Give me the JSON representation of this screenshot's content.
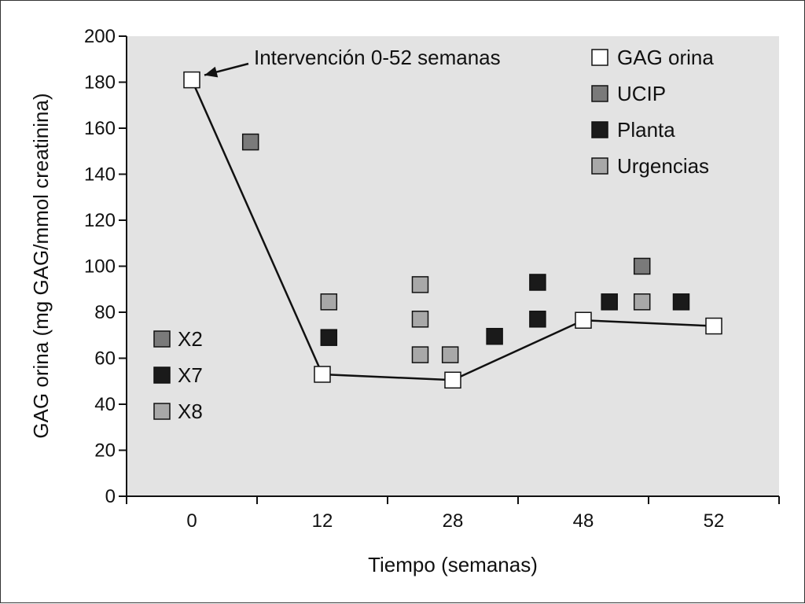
{
  "chart_data": {
    "type": "scatter",
    "title": "",
    "xlabel": "Tiempo (semanas)",
    "ylabel": "GAG orina (mg GAG/mmol creatinina)",
    "ylim": [
      0,
      200
    ],
    "yticks": [
      0,
      20,
      40,
      60,
      80,
      100,
      120,
      140,
      160,
      180,
      200
    ],
    "x_range": [
      -0.5,
      4.5
    ],
    "x_tick_labels": [
      {
        "x": 0,
        "label": "0"
      },
      {
        "x": 1,
        "label": "12"
      },
      {
        "x": 2,
        "label": "28"
      },
      {
        "x": 3,
        "label": "48"
      },
      {
        "x": 4,
        "label": "52"
      }
    ],
    "x_minor_ticks": [
      -0.5,
      0.5,
      1.5,
      2.5,
      3.5,
      4.5
    ],
    "series": [
      {
        "name": "GAG orina",
        "kind": "line-square",
        "color": "#ffffff",
        "points": [
          [
            0,
            181
          ],
          [
            1,
            53
          ],
          [
            2,
            50.5
          ],
          [
            3,
            76.5
          ],
          [
            4,
            74
          ]
        ]
      },
      {
        "name": "UCIP",
        "kind": "square",
        "color": "#7a7a7a",
        "points": [
          [
            0.45,
            154
          ],
          [
            3.45,
            100
          ]
        ]
      },
      {
        "name": "Planta",
        "kind": "square",
        "color": "#1a1a1a",
        "points": [
          [
            1.05,
            69
          ],
          [
            2.32,
            69.5
          ],
          [
            2.65,
            93
          ],
          [
            2.65,
            77
          ],
          [
            3.2,
            84.5
          ],
          [
            3.75,
            84.5
          ]
        ]
      },
      {
        "name": "Urgencias",
        "kind": "square",
        "color": "#a8a8a8",
        "points": [
          [
            1.05,
            84.5
          ],
          [
            1.75,
            92
          ],
          [
            1.75,
            77
          ],
          [
            1.75,
            61.5
          ],
          [
            1.98,
            61.5
          ],
          [
            3.45,
            84.5
          ]
        ]
      }
    ],
    "legend": [
      {
        "label": "GAG orina",
        "color": "#ffffff"
      },
      {
        "label": "UCIP",
        "color": "#7a7a7a"
      },
      {
        "label": "Planta",
        "color": "#1a1a1a"
      },
      {
        "label": "Urgencias",
        "color": "#a8a8a8"
      }
    ],
    "legend_placement": "top-right",
    "dose_legend": [
      {
        "label": "X2",
        "color": "#7a7a7a"
      },
      {
        "label": "X7",
        "color": "#1a1a1a"
      },
      {
        "label": "X8",
        "color": "#a8a8a8"
      }
    ],
    "dose_legend_placement": "lower-left",
    "annotation": {
      "text": "Intervención 0-52 semanas",
      "points_to": [
        0,
        181
      ]
    },
    "plot_background": "#e3e3e3"
  }
}
